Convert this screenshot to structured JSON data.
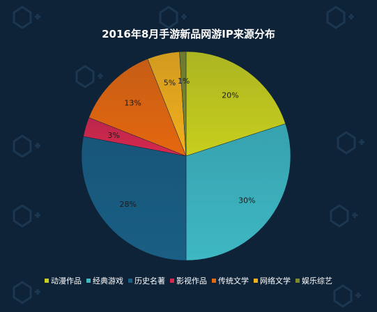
{
  "chart_data": {
    "type": "pie",
    "title": "2016年8月手游新品网游IP来源分布",
    "categories": [
      "动漫作品",
      "经典游戏",
      "历史名著",
      "影视作品",
      "传统文学",
      "网络文学",
      "娱乐综艺"
    ],
    "values": [
      20,
      30,
      28,
      3,
      13,
      5,
      1
    ],
    "labels": [
      "20%",
      "30%",
      "28%",
      "3%",
      "13%",
      "5%",
      "1%"
    ],
    "colors": [
      "#c8cf1e",
      "#3fb8c4",
      "#1a5f85",
      "#d8284e",
      "#e6680f",
      "#f4b01c",
      "#7f8a2c"
    ],
    "legend_position": "bottom"
  }
}
